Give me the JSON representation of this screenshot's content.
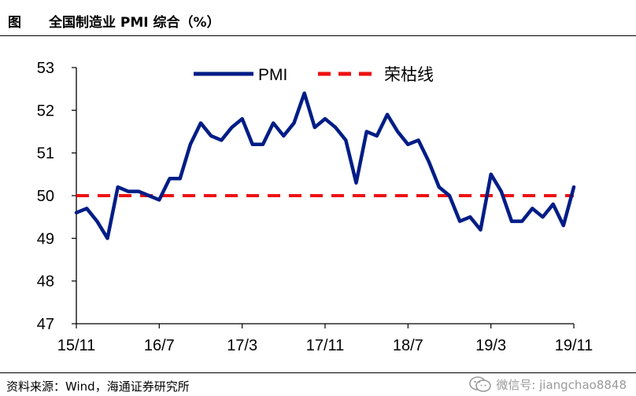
{
  "header": {
    "figure_label": "图",
    "title": "全国制造业 PMI 综合（%）"
  },
  "footer": {
    "source": "资料来源：Wind，海通证券研究所",
    "watermark": "微信号: jiangchao8848"
  },
  "colors": {
    "pmi": "#001d86",
    "threshold": "#ee1111",
    "axis": "#000000"
  },
  "icons": {
    "watermark_icon": "wechat-icon"
  },
  "chart_data": {
    "type": "line",
    "title": "全国制造业 PMI 综合（%）",
    "xlabel": "",
    "ylabel": "",
    "ylim": [
      47,
      53
    ],
    "yticks": [
      47,
      48,
      49,
      50,
      51,
      52,
      53
    ],
    "xlim": [
      "2015-11",
      "2019-11"
    ],
    "xtick_labels": [
      "15/11",
      "16/7",
      "17/3",
      "17/11",
      "18/7",
      "19/3",
      "19/11"
    ],
    "grid": false,
    "legend_position": "top-center",
    "x": [
      "2015-11",
      "2015-12",
      "2016-01",
      "2016-02",
      "2016-03",
      "2016-04",
      "2016-05",
      "2016-06",
      "2016-07",
      "2016-08",
      "2016-09",
      "2016-10",
      "2016-11",
      "2016-12",
      "2017-01",
      "2017-02",
      "2017-03",
      "2017-04",
      "2017-05",
      "2017-06",
      "2017-07",
      "2017-08",
      "2017-09",
      "2017-10",
      "2017-11",
      "2017-12",
      "2018-01",
      "2018-02",
      "2018-03",
      "2018-04",
      "2018-05",
      "2018-06",
      "2018-07",
      "2018-08",
      "2018-09",
      "2018-10",
      "2018-11",
      "2018-12",
      "2019-01",
      "2019-02",
      "2019-03",
      "2019-04",
      "2019-05",
      "2019-06",
      "2019-07",
      "2019-08",
      "2019-09",
      "2019-10",
      "2019-11"
    ],
    "series": [
      {
        "name": "PMI",
        "style": "solid",
        "values": [
          49.6,
          49.7,
          49.4,
          49.0,
          50.2,
          50.1,
          50.1,
          50.0,
          49.9,
          50.4,
          50.4,
          51.2,
          51.7,
          51.4,
          51.3,
          51.6,
          51.8,
          51.2,
          51.2,
          51.7,
          51.4,
          51.7,
          52.4,
          51.6,
          51.8,
          51.6,
          51.3,
          50.3,
          51.5,
          51.4,
          51.9,
          51.5,
          51.2,
          51.3,
          50.8,
          50.2,
          50.0,
          49.4,
          49.5,
          49.2,
          50.5,
          50.1,
          49.4,
          49.4,
          49.7,
          49.5,
          49.8,
          49.3,
          50.2
        ]
      },
      {
        "name": "荣枯线",
        "style": "dashed",
        "values": [
          50,
          50,
          50,
          50,
          50,
          50,
          50,
          50,
          50,
          50,
          50,
          50,
          50,
          50,
          50,
          50,
          50,
          50,
          50,
          50,
          50,
          50,
          50,
          50,
          50,
          50,
          50,
          50,
          50,
          50,
          50,
          50,
          50,
          50,
          50,
          50,
          50,
          50,
          50,
          50,
          50,
          50,
          50,
          50,
          50,
          50,
          50,
          50,
          50
        ]
      }
    ]
  }
}
